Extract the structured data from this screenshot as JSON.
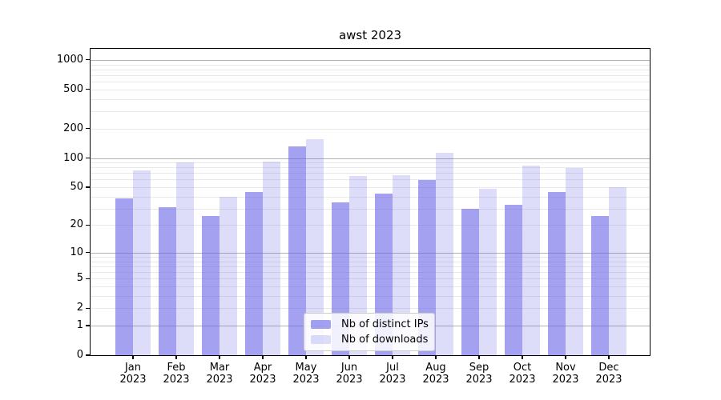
{
  "title": "awst 2023",
  "colors": {
    "ips_fill": "rgba(102,98,230,0.60)",
    "downloads_fill": "rgba(102,98,230,0.22)",
    "grid_major": "#b3b3b3",
    "grid_minor": "#e9e9e9",
    "spine": "#000000",
    "legend_border": "#cccccc",
    "background": "#ffffff"
  },
  "legend": {
    "items": [
      {
        "label": "Nb of distinct IPs",
        "color_key": "ips_fill"
      },
      {
        "label": "Nb of downloads",
        "color_key": "downloads_fill"
      }
    ]
  },
  "chart_data": {
    "type": "bar",
    "title": "awst 2023",
    "x_tick_months": [
      "Jan",
      "Feb",
      "Mar",
      "Apr",
      "May",
      "Jun",
      "Jul",
      "Aug",
      "Sep",
      "Oct",
      "Nov",
      "Dec"
    ],
    "x_tick_year": "2023",
    "series": [
      {
        "name": "Nb of distinct IPs",
        "values": [
          38,
          31,
          25,
          45,
          132,
          35,
          43,
          59,
          30,
          33,
          45,
          25
        ]
      },
      {
        "name": "Nb of downloads",
        "values": [
          74,
          90,
          40,
          92,
          155,
          65,
          66,
          114,
          48,
          83,
          79,
          50
        ]
      }
    ],
    "yscale": "log10(value+1)",
    "yticks": [
      0,
      1,
      2,
      5,
      10,
      20,
      50,
      100,
      200,
      500,
      1000
    ],
    "ylim": [
      0,
      1300
    ],
    "grid": "horizontal, major at 1/10/100/1000, minor at 2-9 per decade",
    "legend_position": "lower center inside plot",
    "bar_layout": "grouped pairs, distinct IPs left of month center, downloads right"
  }
}
